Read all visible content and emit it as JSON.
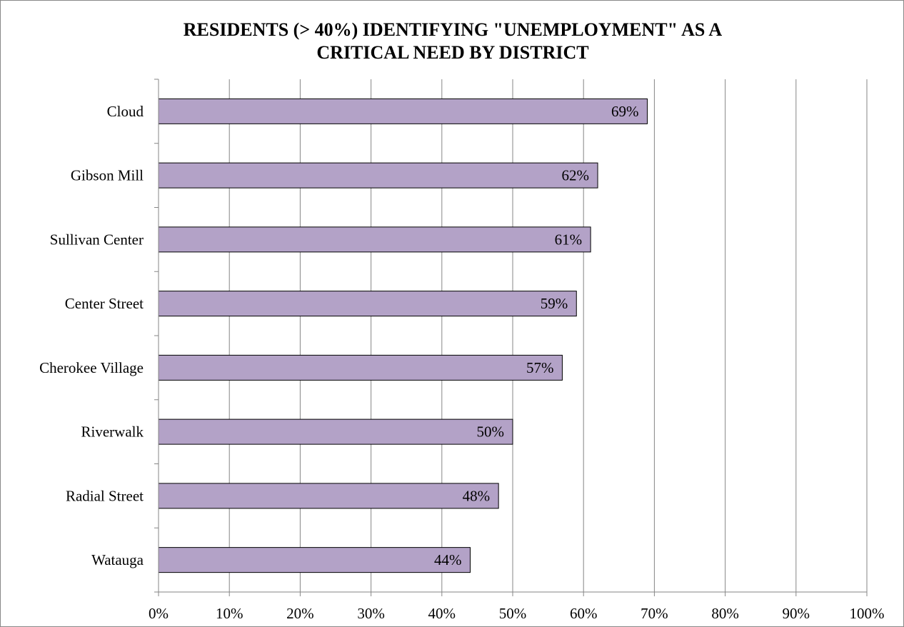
{
  "chart_data": {
    "type": "bar",
    "orientation": "horizontal",
    "title_lines": [
      "RESIDENTS (> 40%) IDENTIFYING \"UNEMPLOYMENT\"  AS A",
      "CRITICAL NEED BY DISTRICT"
    ],
    "categories": [
      "Cloud",
      "Gibson Mill",
      "Sullivan Center",
      "Center Street",
      "Cherokee Village",
      "Riverwalk",
      "Radial Street",
      "Watauga"
    ],
    "values": [
      69,
      62,
      61,
      59,
      57,
      50,
      48,
      44
    ],
    "data_labels": [
      "69%",
      "62%",
      "61%",
      "59%",
      "57%",
      "50%",
      "48%",
      "44%"
    ],
    "x_ticks": [
      "0%",
      "10%",
      "20%",
      "30%",
      "40%",
      "50%",
      "60%",
      "70%",
      "80%",
      "90%",
      "100%"
    ],
    "xlim": [
      0,
      100
    ],
    "xlabel": "",
    "ylabel": "",
    "grid": "vertical",
    "legend": "none",
    "colors": {
      "bar_fill": "#b3a2c7",
      "bar_stroke": "#000000",
      "grid": "#868686"
    }
  }
}
